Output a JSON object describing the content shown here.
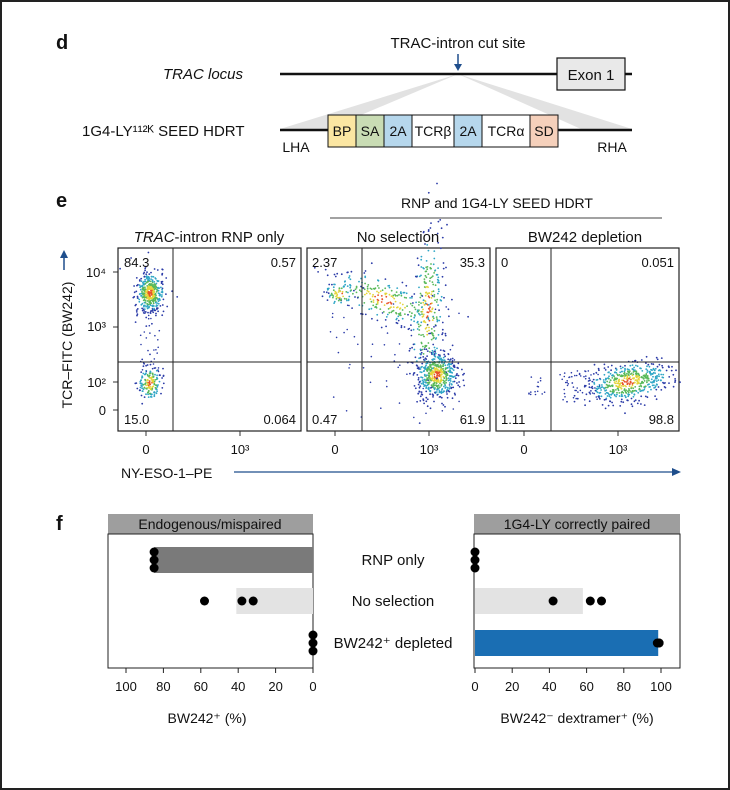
{
  "panel_d": {
    "label": "d",
    "cut_site": "TRAC-intron cut site",
    "locus_label": "TRAC locus",
    "exon_label": "Exon 1",
    "hdrt_label": "1G4-LY¹¹²ᴷ SEED HDRT",
    "lha": "LHA",
    "rha": "RHA",
    "segments": [
      {
        "label": "BP",
        "color": "#fbe6a2"
      },
      {
        "label": "SA",
        "color": "#c9dcb4"
      },
      {
        "label": "2A",
        "color": "#b6d7ec"
      },
      {
        "label": "TCRβ",
        "color": "#ffffff"
      },
      {
        "label": "2A",
        "color": "#b6d7ec"
      },
      {
        "label": "TCRα",
        "color": "#ffffff"
      },
      {
        "label": "SD",
        "color": "#f5d0bb"
      }
    ]
  },
  "panel_e": {
    "label": "e",
    "group_label": "RNP and 1G4-LY SEED HDRT",
    "ylabel": "TCR–FITC (BW242)",
    "xlabel": "NY-ESO-1–PE",
    "yticks": [
      "10⁴",
      "10³",
      "10²",
      "0"
    ],
    "xticks": [
      "0",
      "10³"
    ]
  },
  "panel_f": {
    "label": "f",
    "left_header": "Endogenous/mispaired",
    "right_header": "1G4-LY correctly paired",
    "left_xlabel": "BW242⁺ (%)",
    "right_xlabel": "BW242⁻ dextramer⁺ (%)",
    "left_ticks": [
      "100",
      "80",
      "60",
      "40",
      "20",
      "0"
    ],
    "right_ticks": [
      "0",
      "20",
      "40",
      "60",
      "80",
      "100"
    ],
    "conditions": [
      "RNP only",
      "No selection",
      "BW242⁺ depleted"
    ]
  },
  "chart_data": [
    {
      "type": "scatter",
      "panel": "e",
      "title": "TRAC-intron RNP only",
      "quadrants": {
        "upper_left": "84.3",
        "upper_right": "0.57",
        "lower_left": "15.0",
        "lower_right": "0.064"
      },
      "populations": [
        {
          "x_region": "negative",
          "y_region": "~10^3.6",
          "fraction": 84.3
        },
        {
          "x_region": "negative",
          "y_region": "~10^2",
          "fraction": 15.0
        }
      ]
    },
    {
      "type": "scatter",
      "panel": "e",
      "title": "No selection",
      "quadrants": {
        "upper_left": "2.37",
        "upper_right": "35.3",
        "lower_left": "0.47",
        "lower_right": "61.9"
      }
    },
    {
      "type": "scatter",
      "panel": "e",
      "title": "BW242 depletion",
      "quadrants": {
        "upper_left": "0",
        "upper_right": "0.051",
        "lower_left": "1.11",
        "lower_right": "98.8"
      }
    },
    {
      "type": "bar",
      "panel": "f",
      "title": "Endogenous/mispaired",
      "categories": [
        "RNP only",
        "No selection",
        "BW242⁺ depleted"
      ],
      "values": [
        85,
        41,
        0
      ],
      "points": [
        [
          85,
          85,
          85
        ],
        [
          58,
          38,
          32
        ],
        [
          0,
          0,
          0
        ]
      ],
      "xlim": [
        100,
        0
      ],
      "colors": [
        "#7a7a7a",
        "#e3e3e3",
        "#7a7a7a"
      ]
    },
    {
      "type": "bar",
      "panel": "f",
      "title": "1G4-LY correctly paired",
      "categories": [
        "RNP only",
        "No selection",
        "BW242⁺ depleted"
      ],
      "values": [
        0,
        58,
        98.5
      ],
      "points": [
        [
          0,
          0,
          0
        ],
        [
          42,
          62,
          68
        ],
        [
          98,
          99,
          99
        ]
      ],
      "xlim": [
        0,
        100
      ],
      "colors": [
        "#7a7a7a",
        "#e3e3e3",
        "#1a6eb3"
      ]
    }
  ]
}
